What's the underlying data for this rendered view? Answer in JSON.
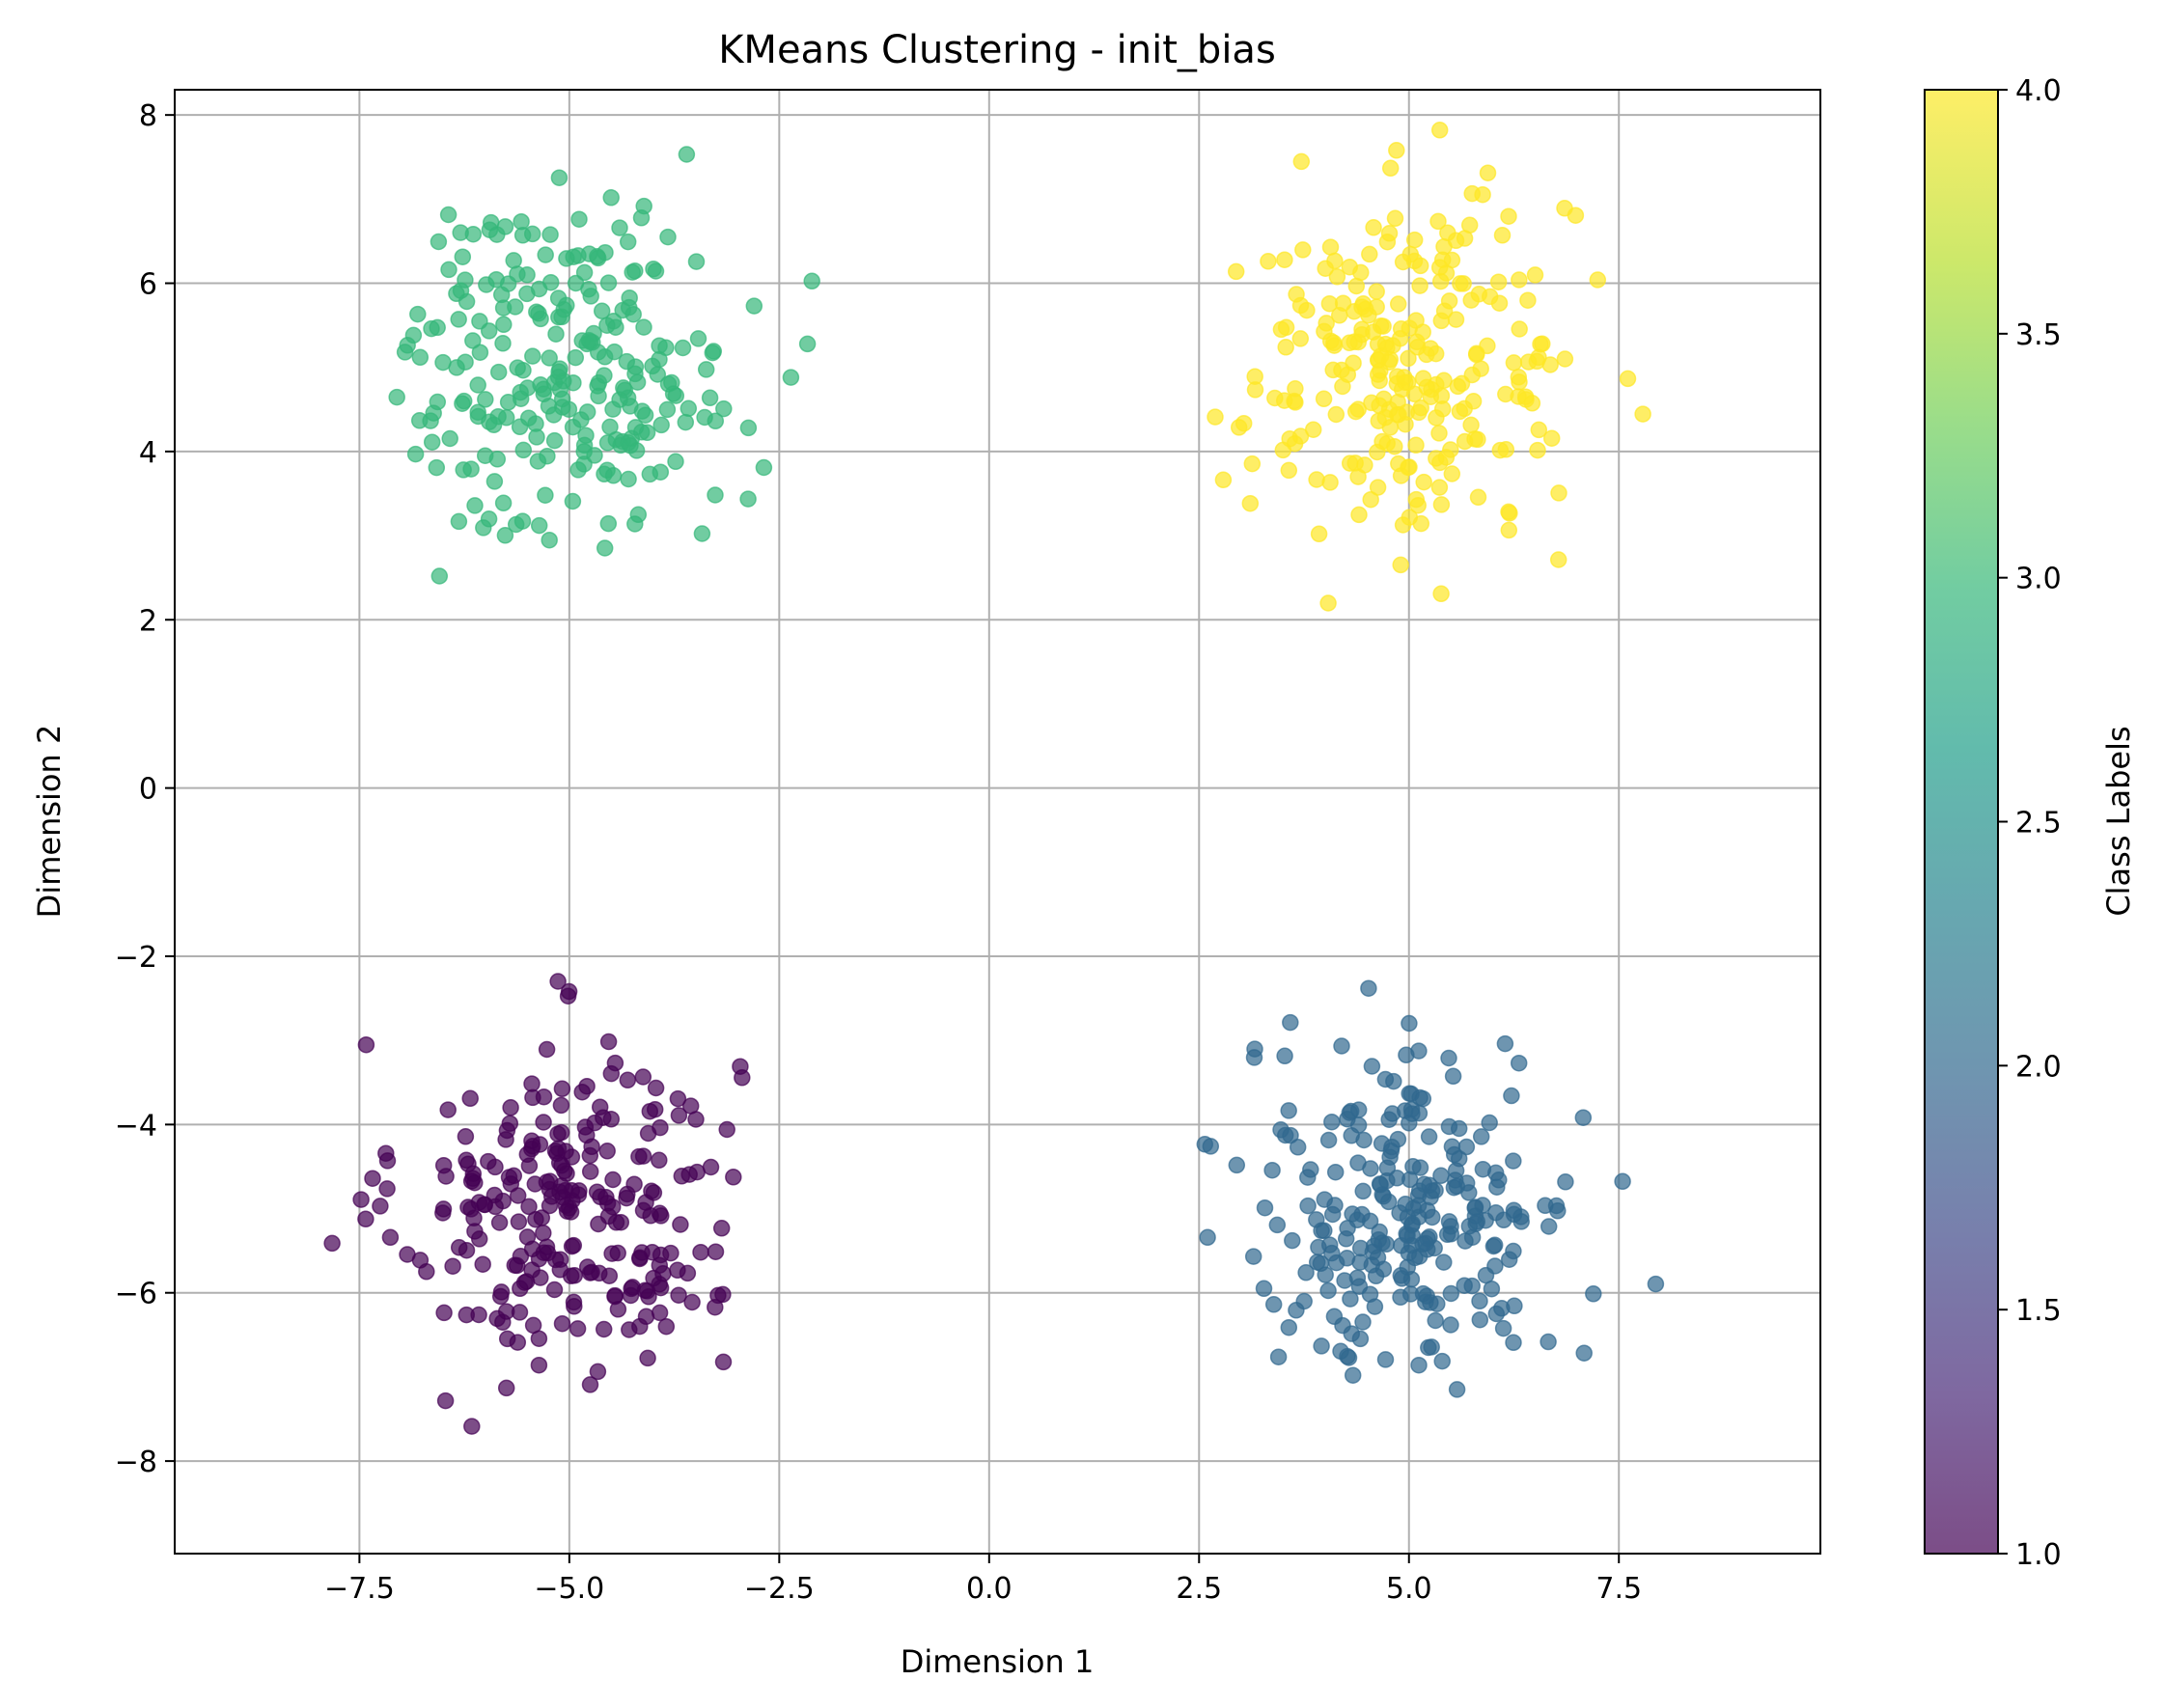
{
  "chart_data": {
    "type": "scatter",
    "title": "KMeans Clustering - init_bias",
    "xlabel": "Dimension 1",
    "ylabel": "Dimension 2",
    "xlim": [
      -9.7,
      9.9
    ],
    "ylim": [
      -9.1,
      8.3
    ],
    "xticks": [
      -7.5,
      -5.0,
      -2.5,
      0.0,
      2.5,
      5.0,
      7.5
    ],
    "xtick_labels": [
      "−7.5",
      "−5.0",
      "−2.5",
      "0.0",
      "2.5",
      "5.0",
      "7.5"
    ],
    "yticks": [
      -8,
      -6,
      -4,
      -2,
      0,
      2,
      4,
      6,
      8
    ],
    "ytick_labels": [
      "−8",
      "−6",
      "−4",
      "−2",
      "0",
      "2",
      "4",
      "6",
      "8"
    ],
    "grid": true,
    "colormap": "viridis",
    "marker_alpha": 0.7,
    "colorbar": {
      "label": "Class Labels",
      "range": [
        1.0,
        4.0
      ],
      "ticks": [
        1.0,
        1.5,
        2.0,
        2.5,
        3.0,
        3.5,
        4.0
      ],
      "tick_labels": [
        "1.0",
        "1.5",
        "2.0",
        "2.5",
        "3.0",
        "3.5",
        "4.0"
      ]
    },
    "clusters": [
      {
        "label": 1,
        "color": "#440154",
        "center": [
          -5.0,
          -5.0
        ],
        "spread": 1.0,
        "count": 250,
        "x_range": [
          -8.0,
          -2.1
        ],
        "y_range": [
          -7.6,
          -2.1
        ]
      },
      {
        "label": 2,
        "color": "#31688e",
        "center": [
          5.0,
          -5.0
        ],
        "spread": 1.0,
        "count": 250,
        "x_range": [
          2.5,
          8.2
        ],
        "y_range": [
          -8.6,
          -2.2
        ]
      },
      {
        "label": 3,
        "color": "#35b779",
        "center": [
          -5.0,
          5.0
        ],
        "spread": 1.0,
        "count": 250,
        "x_range": [
          -7.8,
          -2.1
        ],
        "y_range": [
          2.1,
          7.8
        ]
      },
      {
        "label": 4,
        "color": "#fde725",
        "center": [
          5.0,
          5.0
        ],
        "spread": 1.0,
        "count": 250,
        "x_range": [
          2.3,
          7.9
        ],
        "y_range": [
          2.0,
          7.9
        ]
      }
    ]
  }
}
